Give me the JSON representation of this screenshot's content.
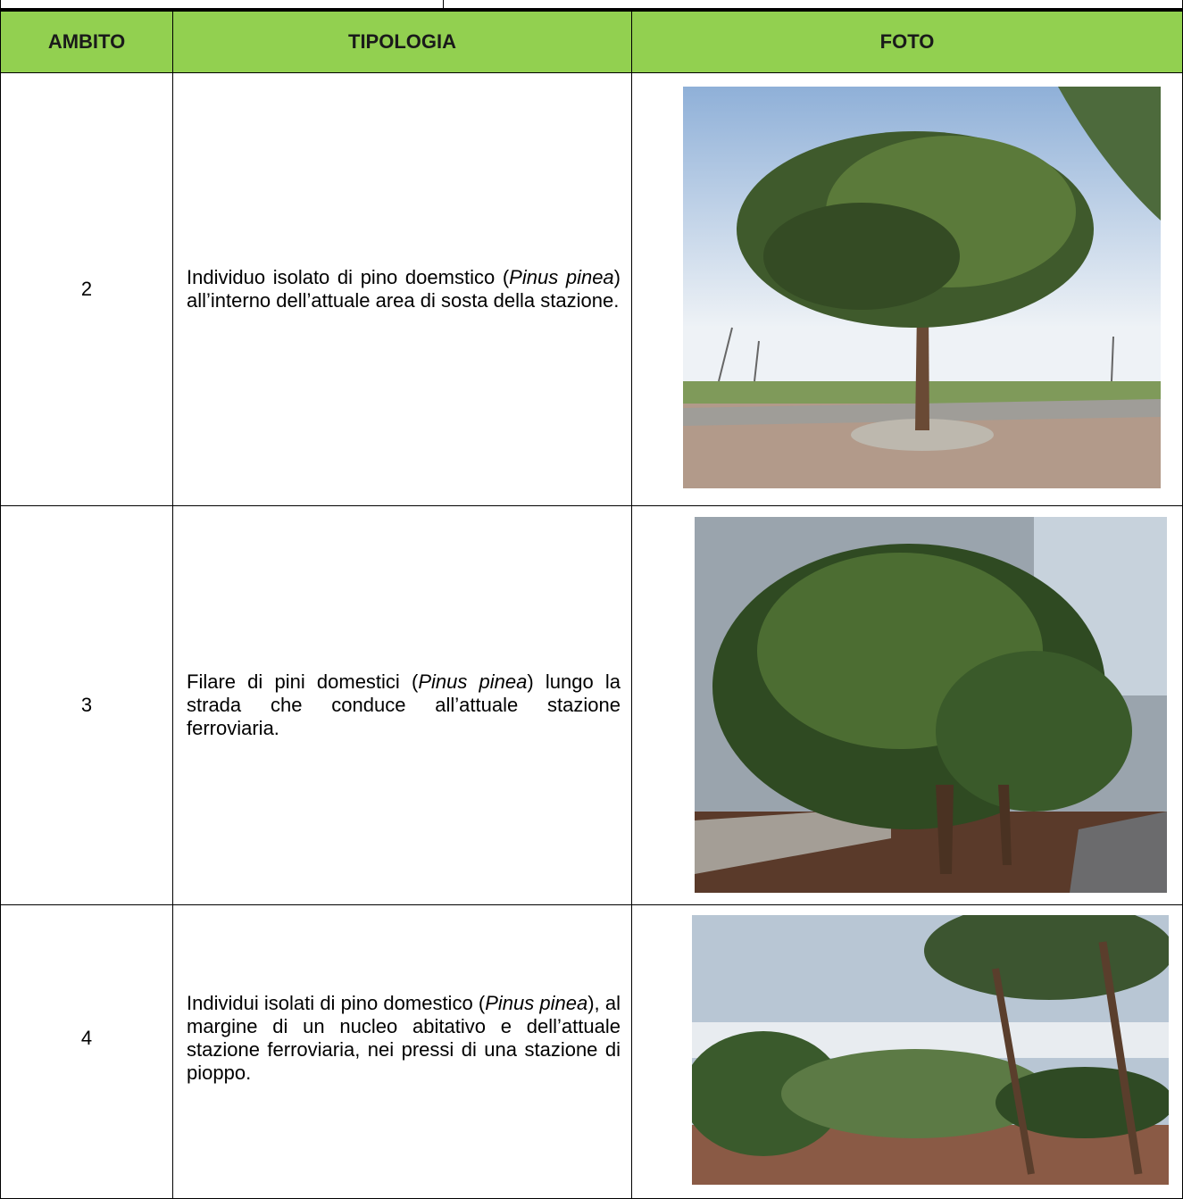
{
  "table": {
    "header": [
      "AMBITO",
      "TIPOLOGIA",
      "FOTO"
    ],
    "rows": [
      {
        "ambito": "2",
        "tipologia": [
          "Individuo isolato di pino doemstico (",
          "Pinus pinea",
          ") all’interno dell’attuale area di sosta della stazione."
        ]
      },
      {
        "ambito": "3",
        "tipologia": [
          "Filare di pini domestici (",
          "Pinus pinea",
          ") lungo la strada che conduce all’attuale stazione ferroviaria."
        ]
      },
      {
        "ambito": "4",
        "tipologia": [
          "Individui isolati di pino domestico (",
          "Pinus pinea",
          "), al margine di un nucleo abitativo e dell’attuale stazione ferroviaria, nei pressi di una stazione di pioppo."
        ]
      }
    ]
  }
}
